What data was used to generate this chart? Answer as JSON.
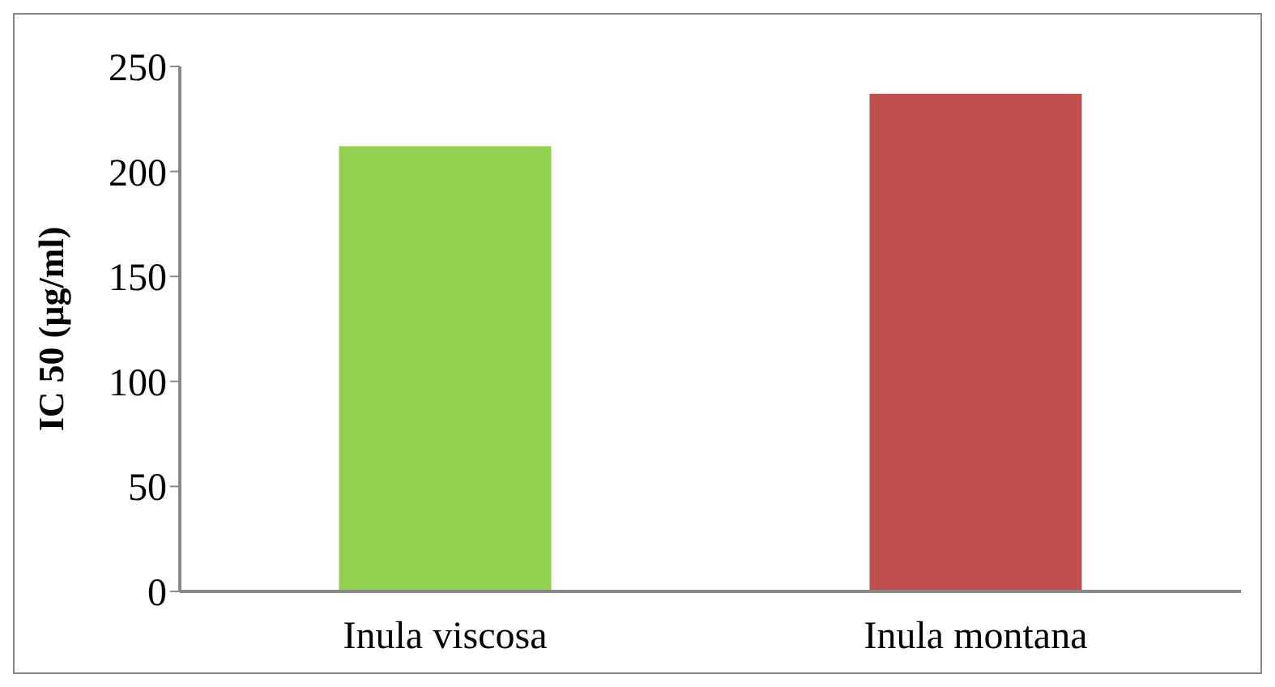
{
  "chart_data": {
    "type": "bar",
    "ylabel": "IC 50  (µg/ml)",
    "categories": [
      "Inula viscosa",
      "Inula montana"
    ],
    "values": [
      212,
      237
    ],
    "colors": [
      "#92d050",
      "#c0504d"
    ],
    "ylim": [
      0,
      250
    ],
    "yticks": [
      0,
      50,
      100,
      150,
      200,
      250
    ]
  }
}
